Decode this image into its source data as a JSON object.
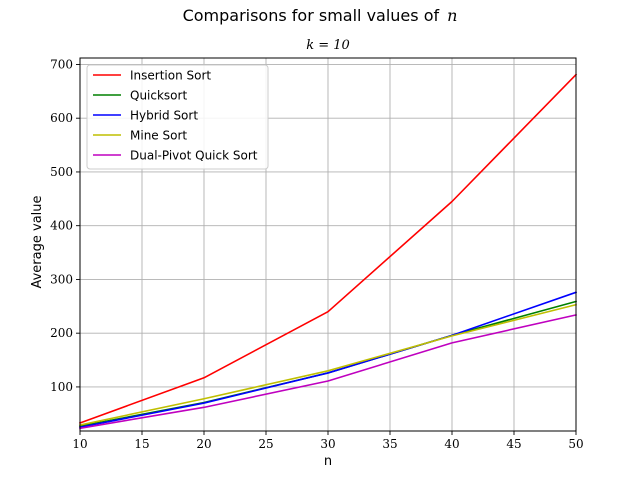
{
  "chart_data": {
    "type": "line",
    "title": "Comparisons for small values of",
    "title_math": "n",
    "subtitle_math": "k = 10",
    "xlabel": "n",
    "ylabel": "Average value",
    "xlim": [
      10,
      50
    ],
    "ylim": [
      18,
      712
    ],
    "xticks": [
      10,
      15,
      20,
      25,
      30,
      35,
      40,
      45,
      50
    ],
    "yticks": [
      100,
      200,
      300,
      400,
      500,
      600,
      700
    ],
    "grid": true,
    "legend_position": "top-left",
    "x": [
      10,
      20,
      30,
      40,
      50
    ],
    "series": [
      {
        "name": "Insertion Sort",
        "color": "#ff0000",
        "values": [
          33,
          117,
          240,
          445,
          681
        ]
      },
      {
        "name": "Quicksort",
        "color": "#008000",
        "values": [
          27,
          71,
          126,
          196,
          259
        ]
      },
      {
        "name": "Hybrid Sort",
        "color": "#0000ff",
        "values": [
          25,
          70,
          126,
          196,
          276
        ]
      },
      {
        "name": "Mine Sort",
        "color": "#bfbf00",
        "values": [
          29,
          78,
          130,
          195,
          253
        ]
      },
      {
        "name": "Dual-Pivot Quick Sort",
        "color": "#bf00bf",
        "values": [
          23,
          62,
          111,
          182,
          234
        ]
      }
    ]
  }
}
